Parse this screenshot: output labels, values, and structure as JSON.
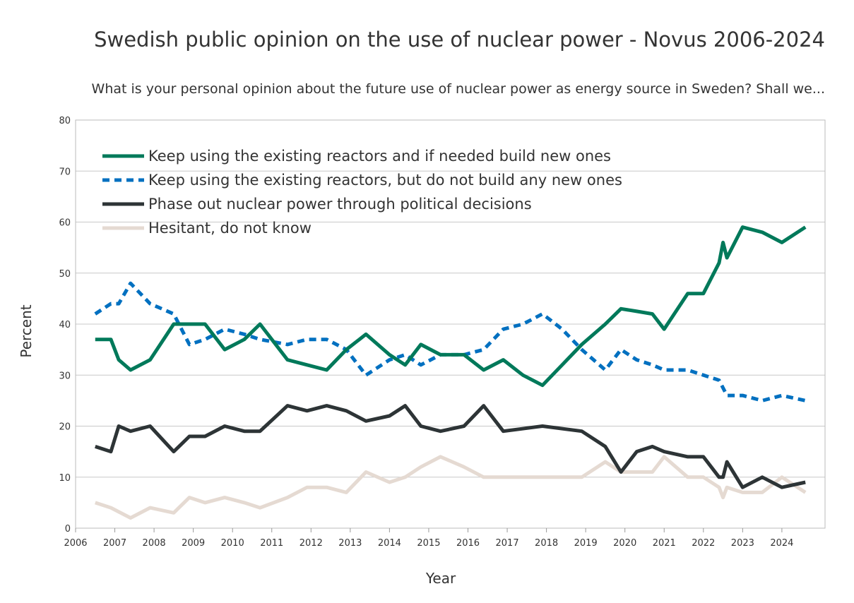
{
  "chart_data": {
    "type": "line",
    "title": "Swedish public opinion on the use of nuclear power - Novus 2006-2024",
    "subtitle": "What is your personal opinion about the future use of nuclear power as energy source in Sweden? Shall we...",
    "xlabel": "Year",
    "ylabel": "Percent",
    "xlim": [
      2006,
      2025.1
    ],
    "ylim": [
      0,
      80
    ],
    "xticks": [
      "2006",
      "2007",
      "2008",
      "2009",
      "2010",
      "2011",
      "2012",
      "2013",
      "2014",
      "2015",
      "2016",
      "2017",
      "2018",
      "2019",
      "2020",
      "2021",
      "2022",
      "2023",
      "2024"
    ],
    "yticks": [
      "0",
      "10",
      "20",
      "30",
      "40",
      "50",
      "60",
      "70",
      "80"
    ],
    "grid": "horizontal",
    "legend_position": "top-left",
    "series": [
      {
        "name": "Keep using the existing reactors and if needed build new ones",
        "color": "#00795a",
        "style": "solid",
        "points": [
          [
            2006.5,
            37
          ],
          [
            2006.9,
            37
          ],
          [
            2007.1,
            33
          ],
          [
            2007.4,
            31
          ],
          [
            2007.9,
            33
          ],
          [
            2008.5,
            40
          ],
          [
            2009.3,
            40
          ],
          [
            2009.8,
            35
          ],
          [
            2010.3,
            37
          ],
          [
            2010.7,
            40
          ],
          [
            2011.4,
            33
          ],
          [
            2011.9,
            32
          ],
          [
            2012.4,
            31
          ],
          [
            2012.9,
            35
          ],
          [
            2013.4,
            38
          ],
          [
            2014.0,
            34
          ],
          [
            2014.4,
            32
          ],
          [
            2014.8,
            36
          ],
          [
            2015.3,
            34
          ],
          [
            2015.9,
            34
          ],
          [
            2016.4,
            31
          ],
          [
            2016.9,
            33
          ],
          [
            2017.4,
            30
          ],
          [
            2017.9,
            28
          ],
          [
            2018.4,
            32
          ],
          [
            2018.9,
            36
          ],
          [
            2019.5,
            40
          ],
          [
            2019.9,
            43
          ],
          [
            2020.3,
            42.5
          ],
          [
            2020.7,
            42
          ],
          [
            2021.0,
            39
          ],
          [
            2021.6,
            46
          ],
          [
            2022.0,
            46
          ],
          [
            2022.4,
            52
          ],
          [
            2022.5,
            56
          ],
          [
            2022.6,
            53
          ],
          [
            2023.0,
            59
          ],
          [
            2023.5,
            58
          ],
          [
            2024.0,
            56
          ],
          [
            2024.6,
            59
          ]
        ]
      },
      {
        "name": "Keep using the existing reactors, but do not build any new ones",
        "color": "#0070c0",
        "style": "dashed",
        "points": [
          [
            2006.5,
            42
          ],
          [
            2006.9,
            44
          ],
          [
            2007.1,
            44
          ],
          [
            2007.4,
            48
          ],
          [
            2007.9,
            44
          ],
          [
            2008.5,
            42
          ],
          [
            2008.9,
            36
          ],
          [
            2009.3,
            37
          ],
          [
            2009.8,
            39
          ],
          [
            2010.3,
            38
          ],
          [
            2010.7,
            37
          ],
          [
            2011.4,
            36
          ],
          [
            2011.9,
            37
          ],
          [
            2012.4,
            37
          ],
          [
            2012.9,
            35
          ],
          [
            2013.4,
            30
          ],
          [
            2014.0,
            33
          ],
          [
            2014.4,
            34
          ],
          [
            2014.8,
            32
          ],
          [
            2015.3,
            34
          ],
          [
            2015.9,
            34
          ],
          [
            2016.4,
            35
          ],
          [
            2016.9,
            39
          ],
          [
            2017.4,
            40
          ],
          [
            2017.9,
            42
          ],
          [
            2018.4,
            39
          ],
          [
            2018.9,
            35
          ],
          [
            2019.5,
            31
          ],
          [
            2019.9,
            35
          ],
          [
            2020.3,
            33
          ],
          [
            2020.7,
            32
          ],
          [
            2021.0,
            31
          ],
          [
            2021.6,
            31
          ],
          [
            2022.0,
            30
          ],
          [
            2022.4,
            29
          ],
          [
            2022.6,
            26
          ],
          [
            2023.0,
            26
          ],
          [
            2023.5,
            25
          ],
          [
            2024.0,
            26
          ],
          [
            2024.6,
            25
          ]
        ]
      },
      {
        "name": "Phase out nuclear power through political decisions",
        "color": "#2d3436",
        "style": "solid",
        "points": [
          [
            2006.5,
            16
          ],
          [
            2006.9,
            15
          ],
          [
            2007.1,
            20
          ],
          [
            2007.4,
            19
          ],
          [
            2007.9,
            20
          ],
          [
            2008.5,
            15
          ],
          [
            2008.9,
            18
          ],
          [
            2009.3,
            18
          ],
          [
            2009.8,
            20
          ],
          [
            2010.3,
            19
          ],
          [
            2010.7,
            19
          ],
          [
            2011.4,
            24
          ],
          [
            2011.9,
            23
          ],
          [
            2012.4,
            24
          ],
          [
            2012.9,
            23
          ],
          [
            2013.4,
            21
          ],
          [
            2014.0,
            22
          ],
          [
            2014.4,
            24
          ],
          [
            2014.8,
            20
          ],
          [
            2015.3,
            19
          ],
          [
            2015.9,
            20
          ],
          [
            2016.4,
            24
          ],
          [
            2016.9,
            19
          ],
          [
            2017.9,
            20
          ],
          [
            2018.9,
            19
          ],
          [
            2019.5,
            16
          ],
          [
            2019.9,
            11
          ],
          [
            2020.3,
            15
          ],
          [
            2020.7,
            16
          ],
          [
            2021.0,
            15
          ],
          [
            2021.6,
            14
          ],
          [
            2022.0,
            14
          ],
          [
            2022.4,
            10
          ],
          [
            2022.5,
            10
          ],
          [
            2022.6,
            13
          ],
          [
            2023.0,
            8
          ],
          [
            2023.5,
            10
          ],
          [
            2024.0,
            8
          ],
          [
            2024.6,
            9
          ]
        ]
      },
      {
        "name": "Hesitant, do not know",
        "color": "#e5dad2",
        "style": "solid",
        "points": [
          [
            2006.5,
            5
          ],
          [
            2006.9,
            4
          ],
          [
            2007.4,
            2
          ],
          [
            2007.9,
            4
          ],
          [
            2008.5,
            3
          ],
          [
            2008.9,
            6
          ],
          [
            2009.3,
            5
          ],
          [
            2009.8,
            6
          ],
          [
            2010.3,
            5
          ],
          [
            2010.7,
            4
          ],
          [
            2011.4,
            6
          ],
          [
            2011.9,
            8
          ],
          [
            2012.4,
            8
          ],
          [
            2012.9,
            7
          ],
          [
            2013.4,
            11
          ],
          [
            2014.0,
            9
          ],
          [
            2014.4,
            10
          ],
          [
            2014.8,
            12
          ],
          [
            2015.3,
            14
          ],
          [
            2015.9,
            12
          ],
          [
            2016.4,
            10
          ],
          [
            2016.9,
            10
          ],
          [
            2017.9,
            10
          ],
          [
            2018.9,
            10
          ],
          [
            2019.5,
            13
          ],
          [
            2019.9,
            11
          ],
          [
            2020.3,
            11
          ],
          [
            2020.7,
            11
          ],
          [
            2021.0,
            14
          ],
          [
            2021.6,
            10
          ],
          [
            2022.0,
            10
          ],
          [
            2022.4,
            8
          ],
          [
            2022.5,
            6
          ],
          [
            2022.6,
            8
          ],
          [
            2023.0,
            7
          ],
          [
            2023.5,
            7
          ],
          [
            2024.0,
            10
          ],
          [
            2024.6,
            7
          ]
        ]
      }
    ]
  }
}
